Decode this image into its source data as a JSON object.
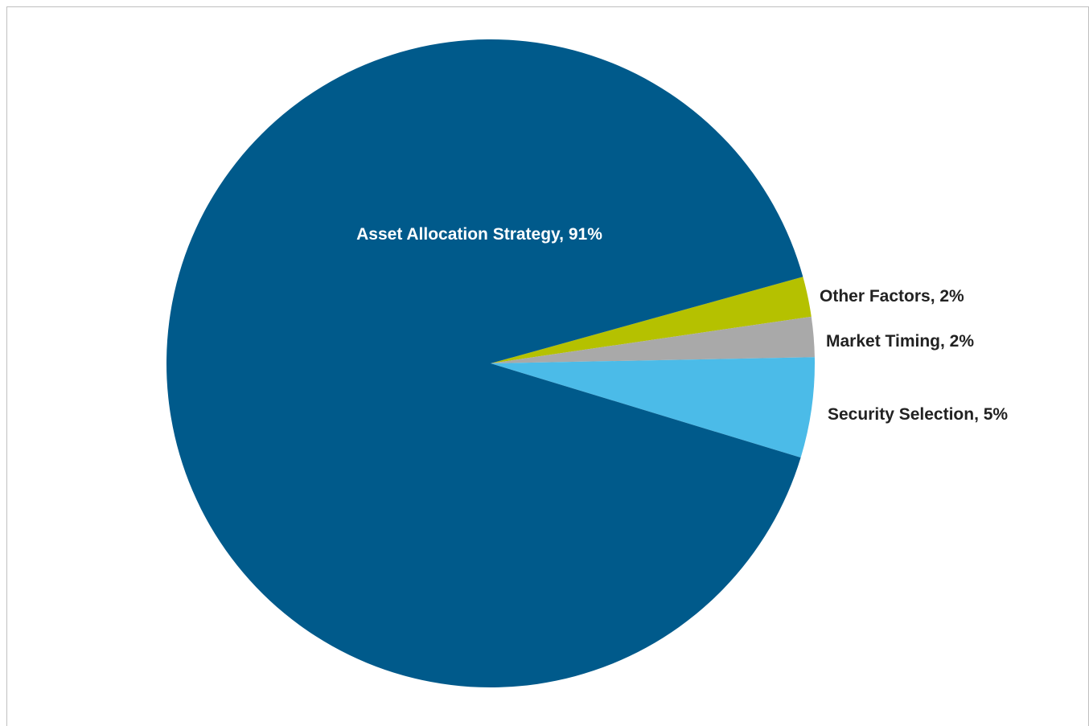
{
  "chart_data": {
    "type": "pie",
    "values": [
      2,
      2,
      5,
      91
    ],
    "value_labels": [
      "Other Factors, 2%",
      "Market Timing, 2%",
      "Security Selection, 5%",
      "Asset Allocation Strategy, 91%"
    ],
    "colors": [
      "#b5c100",
      "#a9a9a9",
      "#4bbbe8",
      "#005a8b"
    ]
  }
}
